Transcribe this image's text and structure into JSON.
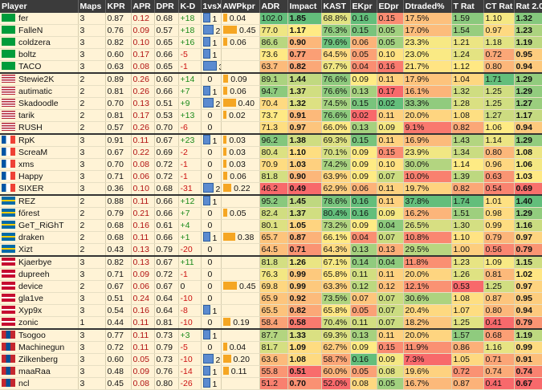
{
  "table": {
    "header": [
      "Player",
      "Maps",
      "KPR",
      "APR",
      "DPR",
      "K-D",
      "1vsX",
      "AWPkpr",
      "ADR",
      "Impact",
      "KAST",
      "EKpr",
      "EDpr",
      "Dtraded%",
      "T Rat",
      "CT Rat",
      "Rat 2.0"
    ],
    "groups": [
      [
        [
          "fer",
          "3",
          "0.87",
          "0.12",
          "0.68",
          "+18",
          "1",
          "0.04",
          "102.0",
          "1.85",
          "68.8%",
          "0.16",
          "0.15",
          "17.5%",
          "1.59",
          "1.10",
          "1.32"
        ],
        [
          "FalleN",
          "3",
          "0.76",
          "0.09",
          "0.57",
          "+18",
          "2",
          "0.45",
          "77.0",
          "1.17",
          "76.3%",
          "0.15",
          "0.05",
          "17.0%",
          "1.54",
          "0.97",
          "1.23"
        ],
        [
          "coldzera",
          "3",
          "0.82",
          "0.10",
          "0.65",
          "+16",
          "1",
          "0.06",
          "86.6",
          "0.90",
          "79.6%",
          "0.06",
          "0.05",
          "23.3%",
          "1.21",
          "1.18",
          "1.19"
        ],
        [
          "boltz",
          "3",
          "0.60",
          "0.17",
          "0.66",
          "-5",
          "1",
          null,
          "73.6",
          "0.77",
          "64.5%",
          "0.05",
          "0.10",
          "23.0%",
          "1.24",
          "0.72",
          "0.95"
        ],
        [
          "TACO",
          "3",
          "0.63",
          "0.08",
          "0.65",
          "-1",
          "3",
          null,
          "63.7",
          "0.82",
          "67.7%",
          "0.04",
          "0.16",
          "21.7%",
          "1.12",
          "0.80",
          "0.94"
        ]
      ],
      [
        [
          "Stewie2K",
          "2",
          "0.89",
          "0.26",
          "0.60",
          "+14",
          "0",
          "0.09",
          "89.1",
          "1.44",
          "76.6%",
          "0.09",
          "0.11",
          "17.9%",
          "1.04",
          "1.71",
          "1.29"
        ],
        [
          "autimatic",
          "2",
          "0.81",
          "0.26",
          "0.66",
          "+7",
          "1",
          "0.06",
          "94.7",
          "1.37",
          "76.6%",
          "0.13",
          "0.17",
          "16.1%",
          "1.32",
          "1.25",
          "1.29"
        ],
        [
          "Skadoodle",
          "2",
          "0.70",
          "0.13",
          "0.51",
          "+9",
          "2",
          "0.40",
          "70.4",
          "1.32",
          "74.5%",
          "0.15",
          "0.02",
          "33.3%",
          "1.28",
          "1.25",
          "1.27"
        ],
        [
          "tarik",
          "2",
          "0.81",
          "0.17",
          "0.53",
          "+13",
          "0",
          "0.02",
          "73.7",
          "0.91",
          "76.6%",
          "0.02",
          "0.11",
          "20.0%",
          "1.08",
          "1.27",
          "1.17"
        ],
        [
          "RUSH",
          "2",
          "0.57",
          "0.26",
          "0.70",
          "-6",
          "0",
          null,
          "71.3",
          "0.97",
          "66.0%",
          "0.13",
          "0.09",
          "9.1%",
          "0.82",
          "1.06",
          "0.94"
        ]
      ],
      [
        [
          "RpK",
          "3",
          "0.91",
          "0.11",
          "0.67",
          "+23",
          "1",
          "0.03",
          "96.2",
          "1.38",
          "69.3%",
          "0.15",
          "0.11",
          "16.9%",
          "1.43",
          "1.14",
          "1.29"
        ],
        [
          "ScreaM",
          "3",
          "0.67",
          "0.22",
          "0.69",
          "-2",
          "0",
          "0.03",
          "80.4",
          "1.10",
          "70.1%",
          "0.09",
          "0.15",
          "23.9%",
          "1.34",
          "0.80",
          "1.08"
        ],
        [
          "xms",
          "3",
          "0.70",
          "0.08",
          "0.72",
          "-1",
          "0",
          "0.03",
          "70.9",
          "1.03",
          "74.2%",
          "0.09",
          "0.10",
          "30.0%",
          "1.14",
          "0.96",
          "1.06"
        ],
        [
          "Happy",
          "3",
          "0.71",
          "0.06",
          "0.72",
          "-1",
          "0",
          "0.06",
          "81.8",
          "0.90",
          "63.9%",
          "0.09",
          "0.07",
          "10.0%",
          "1.39",
          "0.63",
          "1.03"
        ],
        [
          "SIXER",
          "3",
          "0.36",
          "0.10",
          "0.68",
          "-31",
          "2",
          "0.22",
          "46.2",
          "0.49",
          "62.9%",
          "0.06",
          "0.11",
          "19.7%",
          "0.82",
          "0.54",
          "0.69"
        ]
      ],
      [
        [
          "REZ",
          "2",
          "0.88",
          "0.11",
          "0.66",
          "+12",
          "1",
          null,
          "95.2",
          "1.45",
          "78.6%",
          "0.16",
          "0.11",
          "37.8%",
          "1.74",
          "1.01",
          "1.40"
        ],
        [
          "főrest",
          "2",
          "0.79",
          "0.21",
          "0.66",
          "+7",
          "0",
          "0.05",
          "82.4",
          "1.37",
          "80.4%",
          "0.16",
          "0.09",
          "16.2%",
          "1.51",
          "0.98",
          "1.29"
        ],
        [
          "GeT_RiGhT",
          "2",
          "0.68",
          "0.16",
          "0.61",
          "+4",
          "0",
          null,
          "80.1",
          "1.05",
          "73.2%",
          "0.09",
          "0.04",
          "26.5%",
          "1.30",
          "0.99",
          "1.16"
        ],
        [
          "draken",
          "2",
          "0.68",
          "0.11",
          "0.66",
          "+1",
          "1",
          "0.38",
          "65.7",
          "0.87",
          "66.1%",
          "0.04",
          "0.07",
          "10.8%",
          "1.10",
          "0.79",
          "0.97"
        ],
        [
          "Xizt",
          "2",
          "0.43",
          "0.13",
          "0.79",
          "-20",
          "0",
          null,
          "64.5",
          "0.71",
          "64.3%",
          "0.13",
          "0.13",
          "29.5%",
          "1.00",
          "0.56",
          "0.79"
        ]
      ],
      [
        [
          "Kjaerbye",
          "3",
          "0.82",
          "0.13",
          "0.67",
          "+11",
          "0",
          null,
          "81.8",
          "1.26",
          "67.1%",
          "0.14",
          "0.04",
          "11.8%",
          "1.23",
          "1.09",
          "1.15"
        ],
        [
          "dupreeh",
          "3",
          "0.71",
          "0.09",
          "0.72",
          "-1",
          "0",
          null,
          "76.3",
          "0.99",
          "65.8%",
          "0.11",
          "0.11",
          "20.0%",
          "1.26",
          "0.81",
          "1.02"
        ],
        [
          "device",
          "2",
          "0.67",
          "0.06",
          "0.67",
          "0",
          "0",
          "0.45",
          "69.8",
          "0.99",
          "63.3%",
          "0.12",
          "0.12",
          "12.1%",
          "0.53",
          "1.25",
          "0.97"
        ],
        [
          "gla1ve",
          "3",
          "0.51",
          "0.24",
          "0.64",
          "-10",
          "0",
          null,
          "65.9",
          "0.92",
          "73.5%",
          "0.07",
          "0.07",
          "30.6%",
          "1.08",
          "0.87",
          "0.95"
        ],
        [
          "Xyp9x",
          "3",
          "0.54",
          "0.16",
          "0.64",
          "-8",
          "1",
          null,
          "65.5",
          "0.82",
          "65.8%",
          "0.05",
          "0.07",
          "20.4%",
          "1.07",
          "0.80",
          "0.94"
        ],
        [
          "zonic",
          "1",
          "0.44",
          "0.11",
          "0.81",
          "-10",
          "0",
          "0.19",
          "58.4",
          "0.58",
          "70.4%",
          "0.11",
          "0.07",
          "18.2%",
          "1.25",
          "0.41",
          "0.79"
        ]
      ],
      [
        [
          "Tsogoo",
          "3",
          "0.77",
          "0.11",
          "0.73",
          "+3",
          "1",
          null,
          "87.7",
          "1.33",
          "69.3%",
          "0.13",
          "0.11",
          "20.0%",
          "1.57",
          "0.68",
          "1.19"
        ],
        [
          "Machinegun",
          "3",
          "0.72",
          "0.11",
          "0.79",
          "-5",
          "0",
          "0.04",
          "81.7",
          "1.09",
          "62.7%",
          "0.09",
          "0.15",
          "11.9%",
          "0.86",
          "1.16",
          "0.99"
        ],
        [
          "Zilkenberg",
          "3",
          "0.60",
          "0.05",
          "0.73",
          "-10",
          "2",
          "0.20",
          "63.6",
          "1.08",
          "58.7%",
          "0.16",
          "0.09",
          "7.3%",
          "1.05",
          "0.71",
          "0.91"
        ],
        [
          "maaRaa",
          "3",
          "0.48",
          "0.09",
          "0.76",
          "-14",
          "1",
          "0.11",
          "55.8",
          "0.51",
          "60.0%",
          "0.05",
          "0.08",
          "19.6%",
          "0.72",
          "0.74",
          "0.74"
        ],
        [
          "ncl",
          "3",
          "0.45",
          "0.08",
          "0.80",
          "-26",
          "1",
          null,
          "51.2",
          "0.70",
          "52.0%",
          "0.08",
          "0.05",
          "16.7%",
          "0.87",
          "0.41",
          "0.67"
        ]
      ]
    ]
  }
}
